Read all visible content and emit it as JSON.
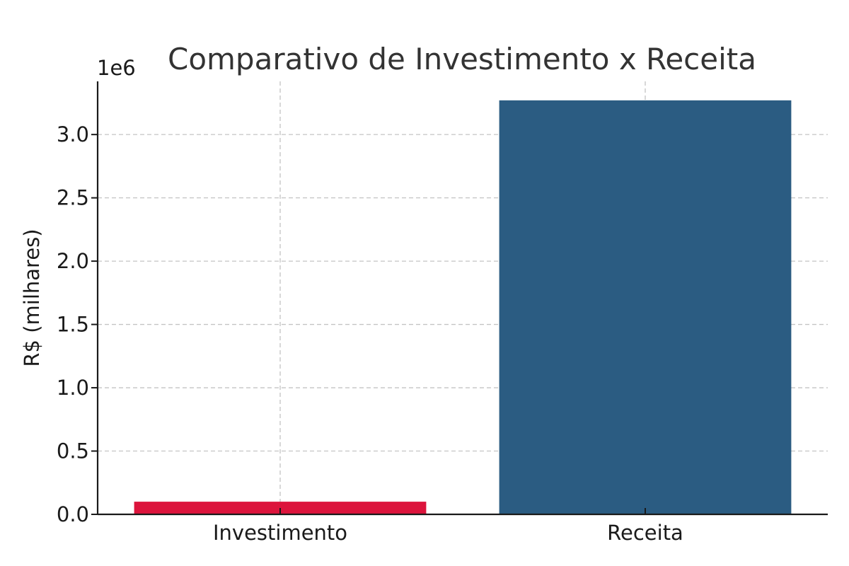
{
  "chart_data": {
    "type": "bar",
    "title": "Comparativo de Investimento x Receita",
    "xlabel": "",
    "ylabel": "R$ (milhares)",
    "offset_text": "1e6",
    "categories": [
      "Investimento",
      "Receita"
    ],
    "values": [
      100000,
      3270000
    ],
    "colors": [
      "#dc143c",
      "#2b5c82"
    ],
    "ylim": [
      0,
      3420000
    ],
    "y_ticks": [
      0,
      500000,
      1000000,
      1500000,
      2000000,
      2500000,
      3000000
    ],
    "y_tick_labels": [
      "0.0",
      "0.5",
      "1.0",
      "1.5",
      "2.0",
      "2.5",
      "3.0"
    ],
    "grid": true,
    "legend": "none"
  }
}
